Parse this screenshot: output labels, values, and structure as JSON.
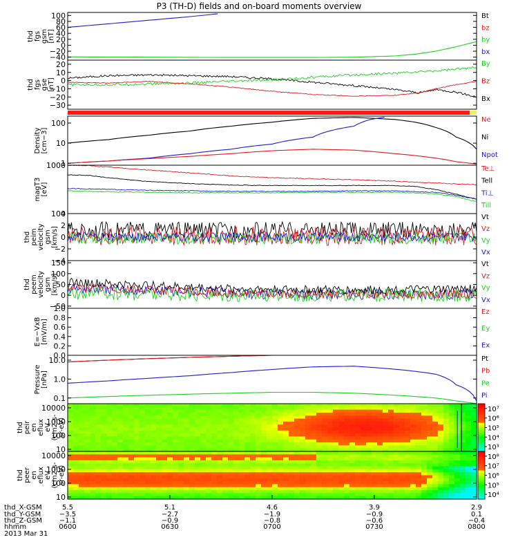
{
  "title": "P3 (TH-D) fields and on-board moments overview",
  "colors": {
    "black": "#000000",
    "red": "#e8161b",
    "green": "#19d419",
    "blue": "#1c1cd0",
    "strip": "#ff1a1a",
    "strip_end": "#f0f060"
  },
  "chart_data": [
    {
      "id": "fgs_gsm",
      "type": "line",
      "ylabel": [
        "thd",
        "fgs",
        "gsm",
        "[nT]"
      ],
      "ylim": [
        -50,
        110
      ],
      "ticks": [
        "100",
        "80",
        "60",
        "40",
        "20",
        "0",
        "−20",
        "−40"
      ],
      "tick_values": [
        100,
        80,
        60,
        40,
        20,
        0,
        -20,
        -40
      ],
      "legend": [
        {
          "text": "Bt",
          "color": "black"
        },
        {
          "text": "bz",
          "color": "red"
        },
        {
          "text": "by",
          "color": "green"
        },
        {
          "text": "bx",
          "color": "blue"
        }
      ],
      "series": [
        {
          "name": "bx",
          "color": "blue",
          "x": [
            0,
            0.1,
            0.2,
            0.3,
            0.37
          ],
          "y": [
            60,
            72,
            84,
            96,
            106
          ]
        },
        {
          "name": "by",
          "color": "green",
          "x": [
            0,
            0.2,
            0.4,
            0.6,
            0.7,
            0.8,
            0.85,
            0.9,
            0.95,
            1
          ],
          "y": [
            -39,
            -40,
            -41,
            -41,
            -40,
            -36,
            -30,
            -20,
            -5,
            12
          ]
        }
      ]
    },
    {
      "id": "fgs_gse",
      "type": "line",
      "ylabel": [
        "thd",
        "fgs",
        "gse",
        "[nT]"
      ],
      "ylim": [
        -35,
        25
      ],
      "ticks": [
        "20",
        "10",
        "0",
        "−10",
        "−20",
        "−30"
      ],
      "tick_values": [
        20,
        10,
        0,
        -10,
        -20,
        -30
      ],
      "legend": [
        {
          "text": "By",
          "color": "green"
        },
        {
          "text": "Bz",
          "color": "red"
        },
        {
          "text": "Bx",
          "color": "black"
        }
      ],
      "series": [
        {
          "name": "Bx",
          "color": "black",
          "x": [
            0,
            0.1,
            0.2,
            0.3,
            0.4,
            0.5,
            0.6,
            0.7,
            0.8,
            0.86,
            0.9,
            0.95,
            1
          ],
          "y": [
            3,
            6,
            7,
            6,
            5,
            2,
            -2,
            -6,
            -11,
            -15,
            -11,
            -14,
            -20
          ],
          "noise": 1.2
        },
        {
          "name": "By",
          "color": "green",
          "x": [
            0,
            0.1,
            0.2,
            0.3,
            0.4,
            0.5,
            0.6,
            0.7,
            0.8,
            0.9,
            1
          ],
          "y": [
            -5,
            -5,
            -4,
            -3,
            -1,
            1,
            4,
            7,
            9,
            12,
            16
          ],
          "noise": 1.5
        },
        {
          "name": "Bz",
          "color": "red",
          "x": [
            0,
            0.1,
            0.2,
            0.3,
            0.4,
            0.5,
            0.6,
            0.7,
            0.8,
            0.86,
            0.9,
            0.95,
            1
          ],
          "y": [
            -2,
            -3,
            -1,
            -4,
            -8,
            -13,
            -17,
            -19,
            -18,
            -15,
            -10,
            -5,
            -1
          ],
          "noise": 0.4
        }
      ]
    },
    {
      "id": "density",
      "type": "line",
      "scale": "log",
      "ylabel": [
        "Density",
        "[cm−3]"
      ],
      "ylim": [
        0.8,
        220
      ],
      "ticks": [
        "100",
        "10",
        "1"
      ],
      "tick_values": [
        100,
        10,
        1
      ],
      "legend": [
        {
          "text": "Ne",
          "color": "red"
        },
        {
          "text": "Ni",
          "color": "black"
        },
        {
          "text": "Npot",
          "color": "blue"
        }
      ],
      "series": [
        {
          "name": "Ni",
          "color": "black",
          "x": [
            0,
            0.1,
            0.2,
            0.3,
            0.4,
            0.5,
            0.6,
            0.7,
            0.8,
            0.85,
            0.9,
            0.95,
            1
          ],
          "y": [
            10,
            15,
            25,
            40,
            70,
            110,
            170,
            190,
            150,
            110,
            60,
            20,
            5
          ]
        },
        {
          "name": "Npot",
          "color": "blue",
          "x": [
            0,
            0.1,
            0.2,
            0.3,
            0.4,
            0.5,
            0.6,
            0.7,
            0.74,
            0.78
          ],
          "y": [
            1,
            1.3,
            1.8,
            3,
            5,
            9,
            20,
            70,
            150,
            200
          ]
        },
        {
          "name": "Ne",
          "color": "red",
          "x": [
            0,
            0.1,
            0.2,
            0.3,
            0.4,
            0.5,
            0.6,
            0.7,
            0.8,
            0.9,
            0.95,
            1
          ],
          "y": [
            1,
            1.3,
            1.7,
            2.2,
            3,
            4.2,
            5,
            4.5,
            3,
            1.8,
            1.2,
            0.9
          ]
        }
      ]
    },
    {
      "id": "temperature",
      "type": "line",
      "ylabel": [
        "magT3",
        "[eV]"
      ],
      "ylim": [
        0,
        1
      ],
      "ticks": [
        "1000",
        "100"
      ],
      "tick_values": [
        1,
        0
      ],
      "legend": [
        {
          "text": "Te⊥",
          "color": "red"
        },
        {
          "text": "Tell",
          "color": "black"
        },
        {
          "text": "Ti⊥",
          "color": "blue"
        },
        {
          "text": "Till",
          "color": "green"
        }
      ],
      "series": [
        {
          "name": "Te⊥",
          "color": "red",
          "x": [
            0,
            0.05,
            0.1,
            0.2,
            0.3,
            0.4,
            0.5,
            0.6,
            0.7,
            0.8,
            0.9,
            1
          ],
          "y": [
            1,
            0.99,
            0.96,
            0.9,
            0.84,
            0.78,
            0.74,
            0.72,
            0.7,
            0.67,
            0.63,
            0.6
          ],
          "noise": 0.008
        },
        {
          "name": "Tell",
          "color": "black",
          "x": [
            0,
            0.05,
            0.1,
            0.2,
            0.3,
            0.4,
            0.5,
            0.6,
            0.7,
            0.8,
            0.85,
            0.9,
            0.95,
            1
          ],
          "y": [
            0.8,
            0.79,
            0.74,
            0.66,
            0.62,
            0.59,
            0.58,
            0.58,
            0.58,
            0.58,
            0.56,
            0.5,
            0.4,
            0.3
          ],
          "noise": 0.006
        },
        {
          "name": "Ti⊥",
          "color": "blue",
          "x": [
            0,
            0.1,
            0.2,
            0.3,
            0.4,
            0.5,
            0.6,
            0.7,
            0.8,
            0.9,
            0.95,
            1
          ],
          "y": [
            0.52,
            0.5,
            0.48,
            0.47,
            0.46,
            0.46,
            0.46,
            0.47,
            0.47,
            0.44,
            0.38,
            0.3
          ],
          "noise": 0.008
        },
        {
          "name": "Till",
          "color": "green",
          "x": [
            0,
            0.1,
            0.2,
            0.3,
            0.4,
            0.5,
            0.6,
            0.7,
            0.8,
            0.9,
            0.95,
            1
          ],
          "y": [
            0.47,
            0.45,
            0.44,
            0.43,
            0.43,
            0.43,
            0.44,
            0.44,
            0.44,
            0.41,
            0.35,
            0.25
          ],
          "noise": 0.008
        }
      ]
    },
    {
      "id": "velocity_gse",
      "type": "line",
      "ylabel": [
        "thd",
        "peim",
        "velocity",
        "gsm",
        "[km/s]"
      ],
      "ylim": [
        -4,
        4
      ],
      "ticks": [
        "4",
        "2",
        "0",
        "−2",
        "−4"
      ],
      "tick_values": [
        4,
        2,
        0,
        -2,
        -4
      ],
      "legend": [
        {
          "text": "Vt",
          "color": "black"
        },
        {
          "text": "Vz",
          "color": "red"
        },
        {
          "text": "Vy",
          "color": "green"
        },
        {
          "text": "Vx",
          "color": "blue"
        }
      ],
      "series": [
        {
          "name": "Vt",
          "color": "black",
          "x": [
            0,
            1
          ],
          "y": [
            1.2,
            1.2
          ],
          "noise": 1.4
        },
        {
          "name": "Vz",
          "color": "red",
          "x": [
            0,
            1
          ],
          "y": [
            0.2,
            0.2
          ],
          "noise": 1.6
        },
        {
          "name": "Vy",
          "color": "green",
          "x": [
            0,
            1
          ],
          "y": [
            -0.2,
            -0.2
          ],
          "noise": 1.0
        },
        {
          "name": "Vx",
          "color": "blue",
          "x": [
            0,
            1
          ],
          "y": [
            0,
            0
          ],
          "noise": 0.8
        }
      ]
    },
    {
      "id": "velocity_gsm",
      "type": "line",
      "ylabel": [
        "thd",
        "peem",
        "velocity",
        "gsm",
        "[km/s]"
      ],
      "ylim": [
        -60,
        160
      ],
      "ticks": [
        "150",
        "100",
        "50",
        "0",
        "−50"
      ],
      "tick_values": [
        150,
        100,
        50,
        0,
        -50
      ],
      "legend": [
        {
          "text": "Vt",
          "color": "black"
        },
        {
          "text": "Vz",
          "color": "red"
        },
        {
          "text": "Vy",
          "color": "green"
        },
        {
          "text": "Vx",
          "color": "blue"
        }
      ],
      "series": [
        {
          "name": "Vx",
          "color": "blue",
          "x": [
            0,
            0.2,
            0.4,
            0.6,
            0.8,
            1
          ],
          "y": [
            30,
            20,
            10,
            5,
            5,
            5
          ],
          "noise": 25
        },
        {
          "name": "Vy",
          "color": "green",
          "x": [
            0,
            0.2,
            0.4,
            0.6,
            0.8,
            1
          ],
          "y": [
            10,
            5,
            0,
            0,
            0,
            0
          ],
          "noise": 30
        },
        {
          "name": "Vz",
          "color": "red",
          "x": [
            0,
            0.2,
            0.4,
            0.6,
            0.8,
            1
          ],
          "y": [
            40,
            25,
            10,
            5,
            5,
            5
          ],
          "noise": 20
        },
        {
          "name": "Vt",
          "color": "black",
          "x": [
            0,
            0.2,
            0.4,
            0.6,
            0.8,
            1
          ],
          "y": [
            60,
            45,
            30,
            25,
            25,
            30
          ],
          "noise": 20
        }
      ]
    },
    {
      "id": "efield",
      "type": "line",
      "ylabel": [
        "E=−VxB",
        "[mV/m]"
      ],
      "ylim": [
        0,
        1
      ],
      "ticks": [
        "1.0",
        "0.8",
        "0.6",
        "0.4",
        "0.2",
        "0.0"
      ],
      "tick_values": [
        1,
        0.8,
        0.6,
        0.4,
        0.2,
        0
      ],
      "legend": [
        {
          "text": "Ez",
          "color": "red"
        },
        {
          "text": "Ey",
          "color": "green"
        },
        {
          "text": "Ex",
          "color": "blue"
        }
      ],
      "series": []
    },
    {
      "id": "pressure",
      "type": "line",
      "scale": "log",
      "ylabel": [
        "Pressure",
        "[nPa]"
      ],
      "ylim": [
        0.05,
        18
      ],
      "ticks": [
        "10.0",
        "1.0",
        "0.1"
      ],
      "tick_values": [
        10,
        1,
        0.1
      ],
      "legend": [
        {
          "text": "Pt",
          "color": "black"
        },
        {
          "text": "Pb",
          "color": "red"
        },
        {
          "text": "Pe",
          "color": "green"
        },
        {
          "text": "Pi",
          "color": "blue"
        }
      ],
      "series": [
        {
          "name": "Pt",
          "color": "black",
          "x": [
            0,
            0.1,
            0.2,
            0.3,
            0.4,
            0.5
          ],
          "y": [
            8,
            10,
            12,
            14,
            16,
            18
          ]
        },
        {
          "name": "Pb",
          "color": "red",
          "x": [
            0,
            0.1,
            0.2,
            0.3,
            0.4,
            0.5
          ],
          "y": [
            8,
            10,
            12,
            14,
            16,
            18
          ]
        },
        {
          "name": "Pi",
          "color": "blue",
          "x": [
            0,
            0.1,
            0.2,
            0.3,
            0.4,
            0.5,
            0.6,
            0.7,
            0.8,
            0.9,
            0.95,
            1
          ],
          "y": [
            0.6,
            0.8,
            1.1,
            1.5,
            2.2,
            3.2,
            4.4,
            4.8,
            3.3,
            1.8,
            0.5,
            0.07
          ]
        },
        {
          "name": "Pe",
          "color": "green",
          "x": [
            0,
            0.1,
            0.2,
            0.3,
            0.4,
            0.5,
            0.6,
            0.7,
            0.8,
            0.9,
            0.95,
            1
          ],
          "y": [
            0.1,
            0.12,
            0.14,
            0.16,
            0.18,
            0.2,
            0.2,
            0.18,
            0.14,
            0.1,
            0.07,
            0.05
          ]
        }
      ]
    },
    {
      "id": "ion_spectrogram",
      "type": "heatmap",
      "ylabel": [
        "thd",
        "peir",
        "en",
        "eflux",
        "eV",
        "(cm2-s-",
        "sr-eV)"
      ],
      "ticks": [
        "10000",
        "1000",
        "100",
        "10"
      ],
      "tick_values": [
        10000,
        1000,
        100,
        10
      ],
      "colorbar": {
        "labels": [
          "10⁷",
          "10⁶",
          "10⁵",
          "10⁴",
          "10³"
        ],
        "label_values": [
          7,
          6,
          5,
          4,
          3
        ],
        "range": [
          2.5,
          7.5
        ]
      }
    },
    {
      "id": "electron_spectrogram",
      "type": "heatmap",
      "ylabel": [
        "thd",
        "peer",
        "en",
        "eflux",
        "eV",
        "(cm2-s-",
        "sr-eV)"
      ],
      "ticks": [
        "10000",
        "1000",
        "100",
        "10"
      ],
      "tick_values": [
        10000,
        1000,
        100,
        10
      ],
      "colorbar": {
        "labels": [
          "10⁸",
          "10⁷",
          "10⁶",
          "10⁵",
          "10⁴"
        ],
        "label_values": [
          8,
          7,
          6,
          5,
          4
        ],
        "range": [
          3.5,
          8.5
        ]
      }
    }
  ],
  "xaxis": {
    "row_labels": [
      "thd_X-GSM",
      "thd_Y-GSM",
      "thd_Z-GSM",
      "hhmm",
      "2013 Mar 31"
    ],
    "ticks": [
      {
        "x": 0,
        "vals": [
          "5.5",
          "−3.5",
          "−1.1",
          "0600"
        ]
      },
      {
        "x": 0.25,
        "vals": [
          "5.1",
          "−2.7",
          "−0.9",
          "0630"
        ]
      },
      {
        "x": 0.5,
        "vals": [
          "4.6",
          "−1.9",
          "−0.8",
          "0700"
        ]
      },
      {
        "x": 0.75,
        "vals": [
          "3.9",
          "−0.9",
          "−0.6",
          "0730"
        ]
      },
      {
        "x": 1,
        "vals": [
          "2.9",
          "0.1",
          "−0.4",
          "0800"
        ]
      }
    ]
  }
}
